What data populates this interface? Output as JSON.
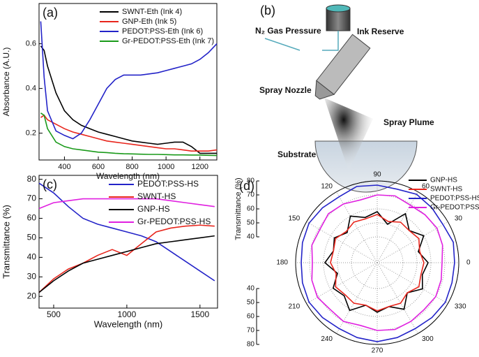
{
  "chart_data": [
    {
      "type": "line",
      "label": "(a)",
      "x_label": "Wavelength (nm)",
      "y_label": "Absorbance (A.U.)",
      "x": [
        260,
        280,
        300,
        350,
        400,
        450,
        500,
        550,
        600,
        650,
        700,
        750,
        800,
        850,
        900,
        950,
        1000,
        1050,
        1100,
        1150,
        1200,
        1250,
        1300
      ],
      "xlim": [
        250,
        1300
      ],
      "xticks": [
        400,
        600,
        800,
        1000,
        1200
      ],
      "ylim": [
        0.08,
        0.78
      ],
      "yticks": [
        0.2,
        0.4,
        0.6
      ],
      "legend": "upper right",
      "series": [
        {
          "name": "SWNT-Eth (Ink 4)",
          "color": "#000000",
          "values": [
            0.59,
            0.57,
            0.5,
            0.38,
            0.3,
            0.26,
            0.235,
            0.22,
            0.205,
            0.195,
            0.185,
            0.175,
            0.165,
            0.16,
            0.155,
            0.15,
            0.155,
            0.16,
            0.16,
            0.14,
            0.11,
            0.11,
            0.11
          ]
        },
        {
          "name": "GNP-Eth (Ink 5)",
          "color": "#e8251c",
          "values": [
            0.27,
            0.28,
            0.26,
            0.24,
            0.22,
            0.205,
            0.195,
            0.185,
            0.175,
            0.165,
            0.16,
            0.155,
            0.15,
            0.145,
            0.14,
            0.135,
            0.13,
            0.13,
            0.125,
            0.12,
            0.12,
            0.12,
            0.125
          ]
        },
        {
          "name": "PEDOT:PSS-Eth (Ink 6)",
          "color": "#2323c8",
          "values": [
            0.7,
            0.45,
            0.3,
            0.21,
            0.19,
            0.175,
            0.2,
            0.26,
            0.33,
            0.4,
            0.44,
            0.46,
            0.46,
            0.46,
            0.465,
            0.47,
            0.48,
            0.49,
            0.5,
            0.51,
            0.53,
            0.56,
            0.6
          ]
        },
        {
          "name": "Gr-PEDOT:PSS-Eth (Ink 7)",
          "color": "#1a9a1a",
          "values": [
            0.29,
            0.28,
            0.22,
            0.16,
            0.14,
            0.13,
            0.125,
            0.12,
            0.115,
            0.113,
            0.11,
            0.108,
            0.107,
            0.106,
            0.105,
            0.105,
            0.104,
            0.103,
            0.103,
            0.102,
            0.102,
            0.101,
            0.1
          ]
        }
      ]
    },
    {
      "type": "line",
      "label": "(c)",
      "x_label": "Wavelength (nm)",
      "y_label": "Transmittance (%)",
      "x": [
        400,
        500,
        600,
        700,
        800,
        900,
        1000,
        1100,
        1200,
        1300,
        1400,
        1500,
        1600
      ],
      "xlim": [
        400,
        1620
      ],
      "xticks": [
        500,
        1000,
        1500
      ],
      "ylim": [
        14,
        82
      ],
      "yticks": [
        20,
        30,
        40,
        50,
        60,
        70,
        80
      ],
      "legend": "upper right",
      "series": [
        {
          "name": "PEDOT:PSS-HS",
          "color": "#2323c8",
          "values": [
            78,
            73,
            66,
            60,
            57,
            55,
            53,
            51,
            48,
            43,
            38,
            33,
            28
          ]
        },
        {
          "name": "SWNT-HS",
          "color": "#e8251c",
          "values": [
            22,
            29,
            34,
            37,
            41,
            44,
            41,
            47,
            53,
            55,
            56,
            56.5,
            56
          ]
        },
        {
          "name": "GNP-HS",
          "color": "#000000",
          "values": [
            22,
            28,
            33,
            37,
            39,
            41,
            43,
            45,
            47,
            48,
            49,
            50,
            51
          ]
        },
        {
          "name": "Gr-PEDOT:PSS-HS",
          "color": "#e020e0",
          "values": [
            65,
            68,
            69,
            70,
            70,
            70,
            70,
            70,
            70,
            69,
            68,
            67,
            66
          ]
        }
      ]
    },
    {
      "type": "polar",
      "label": "(d)",
      "r_label": "Transmittance (%)",
      "theta": [
        0,
        15,
        30,
        45,
        60,
        75,
        90,
        105,
        120,
        135,
        150,
        165,
        180,
        195,
        210,
        225,
        240,
        255,
        270,
        285,
        300,
        315,
        330,
        345
      ],
      "thetaticks": [
        0,
        30,
        60,
        90,
        120,
        150,
        180,
        210,
        240,
        270,
        300,
        330
      ],
      "rlim": [
        21.5,
        80
      ],
      "rticks": [
        40,
        50,
        60,
        70,
        80
      ],
      "legend": "upper right",
      "series": [
        {
          "name": "GNP-HS",
          "color": "#000000",
          "values": [
            58,
            52,
            60,
            54,
            62,
            50,
            58,
            55,
            60,
            52,
            57,
            54,
            59,
            51,
            58,
            55,
            61,
            53,
            57,
            54,
            60,
            52,
            59,
            55
          ]
        },
        {
          "name": "SWNT-HS",
          "color": "#e8251c",
          "values": [
            55,
            53,
            56,
            54,
            55,
            52,
            56,
            54,
            55,
            53,
            56,
            54,
            55,
            52,
            56,
            54,
            55,
            53,
            56,
            54,
            55,
            52,
            56,
            54
          ]
        },
        {
          "name": "PEDOT:PSS-HS",
          "color": "#2323c8",
          "values": [
            77,
            78,
            76,
            77,
            78,
            76,
            77,
            78,
            76,
            77,
            78,
            77,
            76,
            77,
            78,
            77,
            76,
            77,
            78,
            77,
            76,
            77,
            78,
            77
          ]
        },
        {
          "name": "Gr-PEDOT:PSS-HS",
          "color": "#e020e0",
          "values": [
            68,
            70,
            71,
            70,
            69,
            71,
            70,
            68,
            70,
            71,
            69,
            70,
            68,
            70,
            71,
            69,
            70,
            68,
            70,
            71,
            70,
            69,
            70,
            69
          ]
        }
      ]
    }
  ],
  "diagram": {
    "label": "(b)",
    "gas": "N₂ Gas Pressure",
    "reserve": "Ink Reserve",
    "nozzle": "Spray Nozzle",
    "plume": "Spray Plume",
    "substrate": "Substrate"
  }
}
